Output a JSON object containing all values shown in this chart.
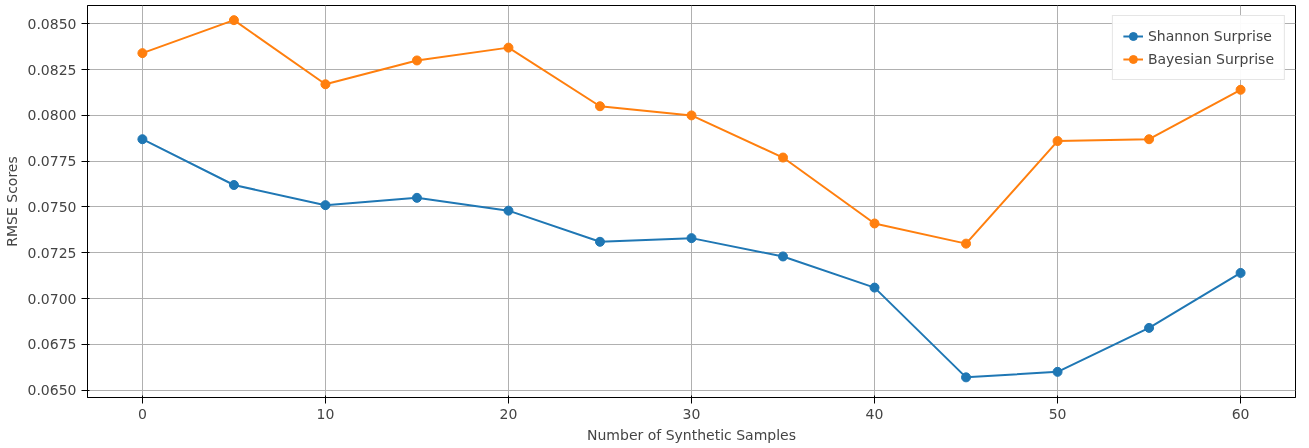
{
  "chart_data": {
    "type": "line",
    "xlabel": "Number of Synthetic Samples",
    "ylabel": "RMSE Scores",
    "x": [
      0,
      5,
      10,
      15,
      20,
      25,
      30,
      35,
      40,
      45,
      50,
      55,
      60
    ],
    "series": [
      {
        "name": "Shannon Surprise",
        "color": "#1f77b4",
        "values": [
          0.0787,
          0.0762,
          0.0751,
          0.0755,
          0.0748,
          0.0731,
          0.0733,
          0.0723,
          0.0706,
          0.0657,
          0.066,
          0.0684,
          0.0714
        ]
      },
      {
        "name": "Bayesian Surprise",
        "color": "#ff7f0e",
        "values": [
          0.0834,
          0.0852,
          0.0817,
          0.083,
          0.0837,
          0.0805,
          0.08,
          0.0777,
          0.0741,
          0.073,
          0.0786,
          0.0787,
          0.0814
        ]
      }
    ],
    "xlim": [
      -3,
      63
    ],
    "xticks": [
      0,
      10,
      20,
      30,
      40,
      50,
      60
    ],
    "ylim": [
      0.0646,
      0.086
    ],
    "yticks": [
      {
        "value": 0.065,
        "label": "0.0650"
      },
      {
        "value": 0.0675,
        "label": "0.0675"
      },
      {
        "value": 0.07,
        "label": "0.0700"
      },
      {
        "value": 0.0725,
        "label": "0.0725"
      },
      {
        "value": 0.075,
        "label": "0.0750"
      },
      {
        "value": 0.0775,
        "label": "0.0775"
      },
      {
        "value": 0.08,
        "label": "0.0800"
      },
      {
        "value": 0.0825,
        "label": "0.0825"
      },
      {
        "value": 0.085,
        "label": "0.0850"
      }
    ],
    "grid": true,
    "legend": "top right",
    "marker": "circle",
    "line_style": "solid"
  }
}
